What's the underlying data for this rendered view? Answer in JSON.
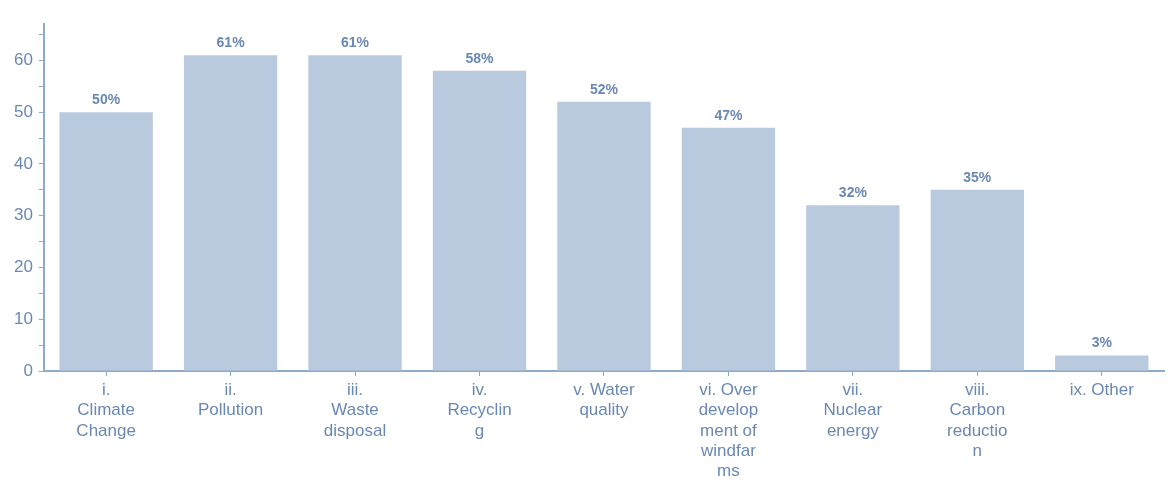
{
  "chart_data": {
    "type": "bar",
    "categories": [
      "i. Climate Change",
      "ii. Pollution",
      "iii. Waste disposal",
      "iv. Recycling",
      "v. Water quality",
      "vi. Over development of windfarms",
      "vii. Nuclear energy",
      "viii. Carbon reduction",
      "ix. Other"
    ],
    "values": [
      50,
      61,
      61,
      58,
      52,
      47,
      32,
      35,
      3
    ],
    "value_labels": [
      "50%",
      "61%",
      "61%",
      "58%",
      "52%",
      "47%",
      "32%",
      "35%",
      "3%"
    ],
    "color": "#b9c9de",
    "ylim": [
      0,
      67
    ],
    "yticks": [
      0,
      {
        "value": 5,
        "label": null
      },
      10,
      {
        "value": 15,
        "label": null
      },
      20,
      {
        "value": 25,
        "label": null
      },
      30,
      {
        "value": 35,
        "label": null
      },
      40,
      {
        "value": 45,
        "label": null
      },
      50,
      {
        "value": 55,
        "label": null
      },
      60,
      {
        "value": 65,
        "label": null
      }
    ],
    "grid": false,
    "legend": false
  }
}
